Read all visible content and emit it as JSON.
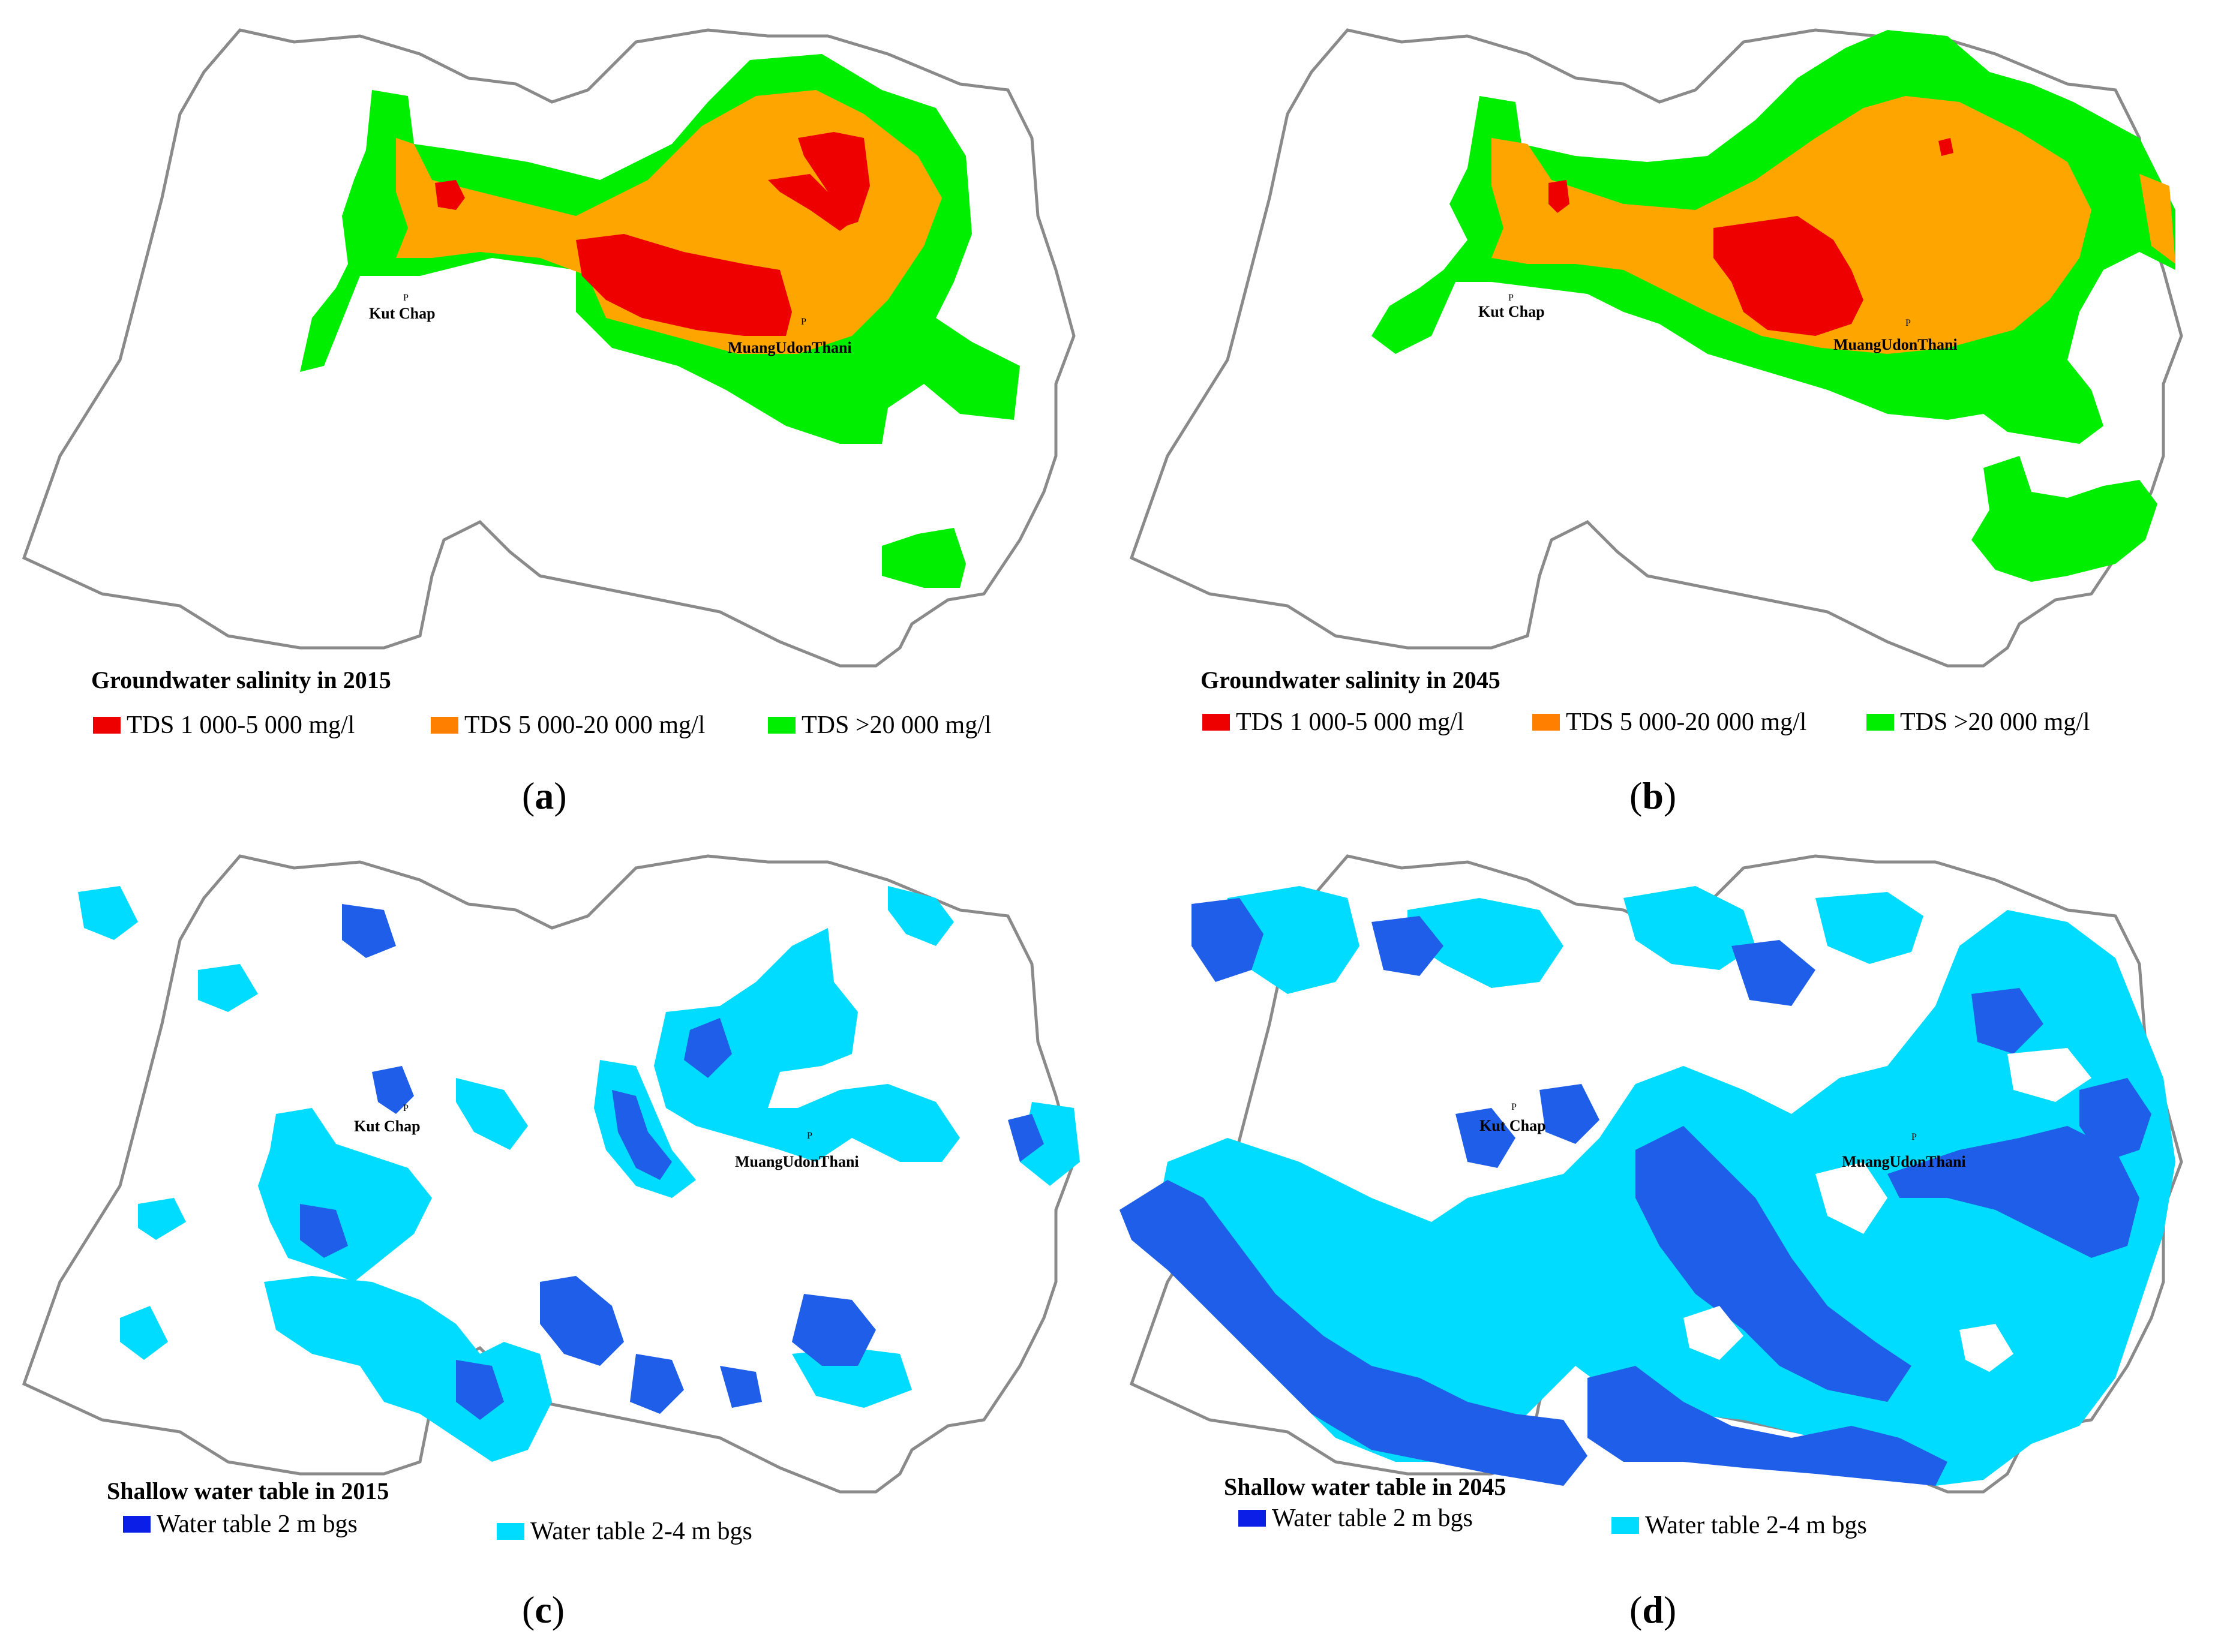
{
  "colors": {
    "outline": "#8a8a8a",
    "tds_low": "#ee0000",
    "tds_mid": "#ffa500",
    "tds_high": "#00ee00",
    "wt_shallow": "#1f5ee8",
    "wt_mid": "#00dcff"
  },
  "panels": {
    "a": {
      "caption_letter": "a",
      "legend_title": "Groundwater salinity in 2015",
      "legend": [
        "TDS 1 000-5 000 mg/l",
        "TDS 5 000-20 000 mg/l",
        "TDS >20 000 mg/l"
      ],
      "places": [
        "Kut Chap",
        "MuangUdonThani"
      ],
      "marker": "P"
    },
    "b": {
      "caption_letter": "b",
      "legend_title": "Groundwater salinity in 2045",
      "legend": [
        "TDS 1 000-5 000 mg/l",
        "TDS 5 000-20 000 mg/l",
        "TDS >20 000 mg/l"
      ],
      "places": [
        "Kut Chap",
        "MuangUdonThani"
      ],
      "marker": "P"
    },
    "c": {
      "caption_letter": "c",
      "legend_title": "Shallow water table in 2015",
      "legend": [
        "Water table 2 m bgs",
        "Water table 2-4 m bgs"
      ],
      "places": [
        "Kut Chap",
        "MuangUdonThani"
      ],
      "marker": "P"
    },
    "d": {
      "caption_letter": "d",
      "legend_title": "Shallow water table in 2045",
      "legend": [
        "Water table 2 m bgs",
        "Water table 2-4 m bgs"
      ],
      "places": [
        "Kut Chap",
        "MuangUdonThani"
      ],
      "marker": "P"
    }
  }
}
